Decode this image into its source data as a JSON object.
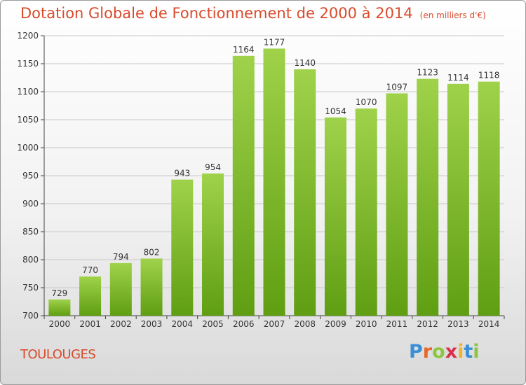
{
  "title": "Dotation Globale de Fonctionnement de 2000 à 2014",
  "unit": "(en milliers d'€)",
  "commune": "TOULOUGES",
  "logo": {
    "letters": [
      "P",
      "r",
      "o",
      "x",
      "i",
      "t",
      "i"
    ],
    "colors": [
      "#3a8fd6",
      "#e8682a",
      "#8cc63f",
      "#d9304a",
      "#f0b52a",
      "#3a8fd6",
      "#8cc63f"
    ]
  },
  "colors": {
    "bar_light": "#9fd24a",
    "bar_dark": "#5f9e12",
    "title": "#d94a2b"
  },
  "chart_data": {
    "type": "bar",
    "categories": [
      "2000",
      "2001",
      "2002",
      "2003",
      "2004",
      "2005",
      "2006",
      "2007",
      "2008",
      "2009",
      "2010",
      "2011",
      "2012",
      "2013",
      "2014"
    ],
    "values": [
      729,
      770,
      794,
      802,
      943,
      954,
      1164,
      1177,
      1140,
      1054,
      1070,
      1097,
      1123,
      1114,
      1118
    ],
    "data_labels": [
      "729",
      "770",
      "794",
      "802",
      "943",
      "954",
      "1164",
      "1177",
      "1140",
      "1054",
      "1070",
      "1097",
      "1123",
      "1114",
      "1118"
    ],
    "yticks": [
      700,
      750,
      800,
      850,
      900,
      950,
      1000,
      1050,
      1100,
      1150,
      1200
    ],
    "ytick_labels": [
      "700",
      "750",
      "800",
      "850",
      "900",
      "950",
      "1000",
      "1050",
      "1100",
      "1150",
      "1200"
    ],
    "ylim": [
      700,
      1200
    ],
    "grid": true,
    "legend": "none"
  }
}
